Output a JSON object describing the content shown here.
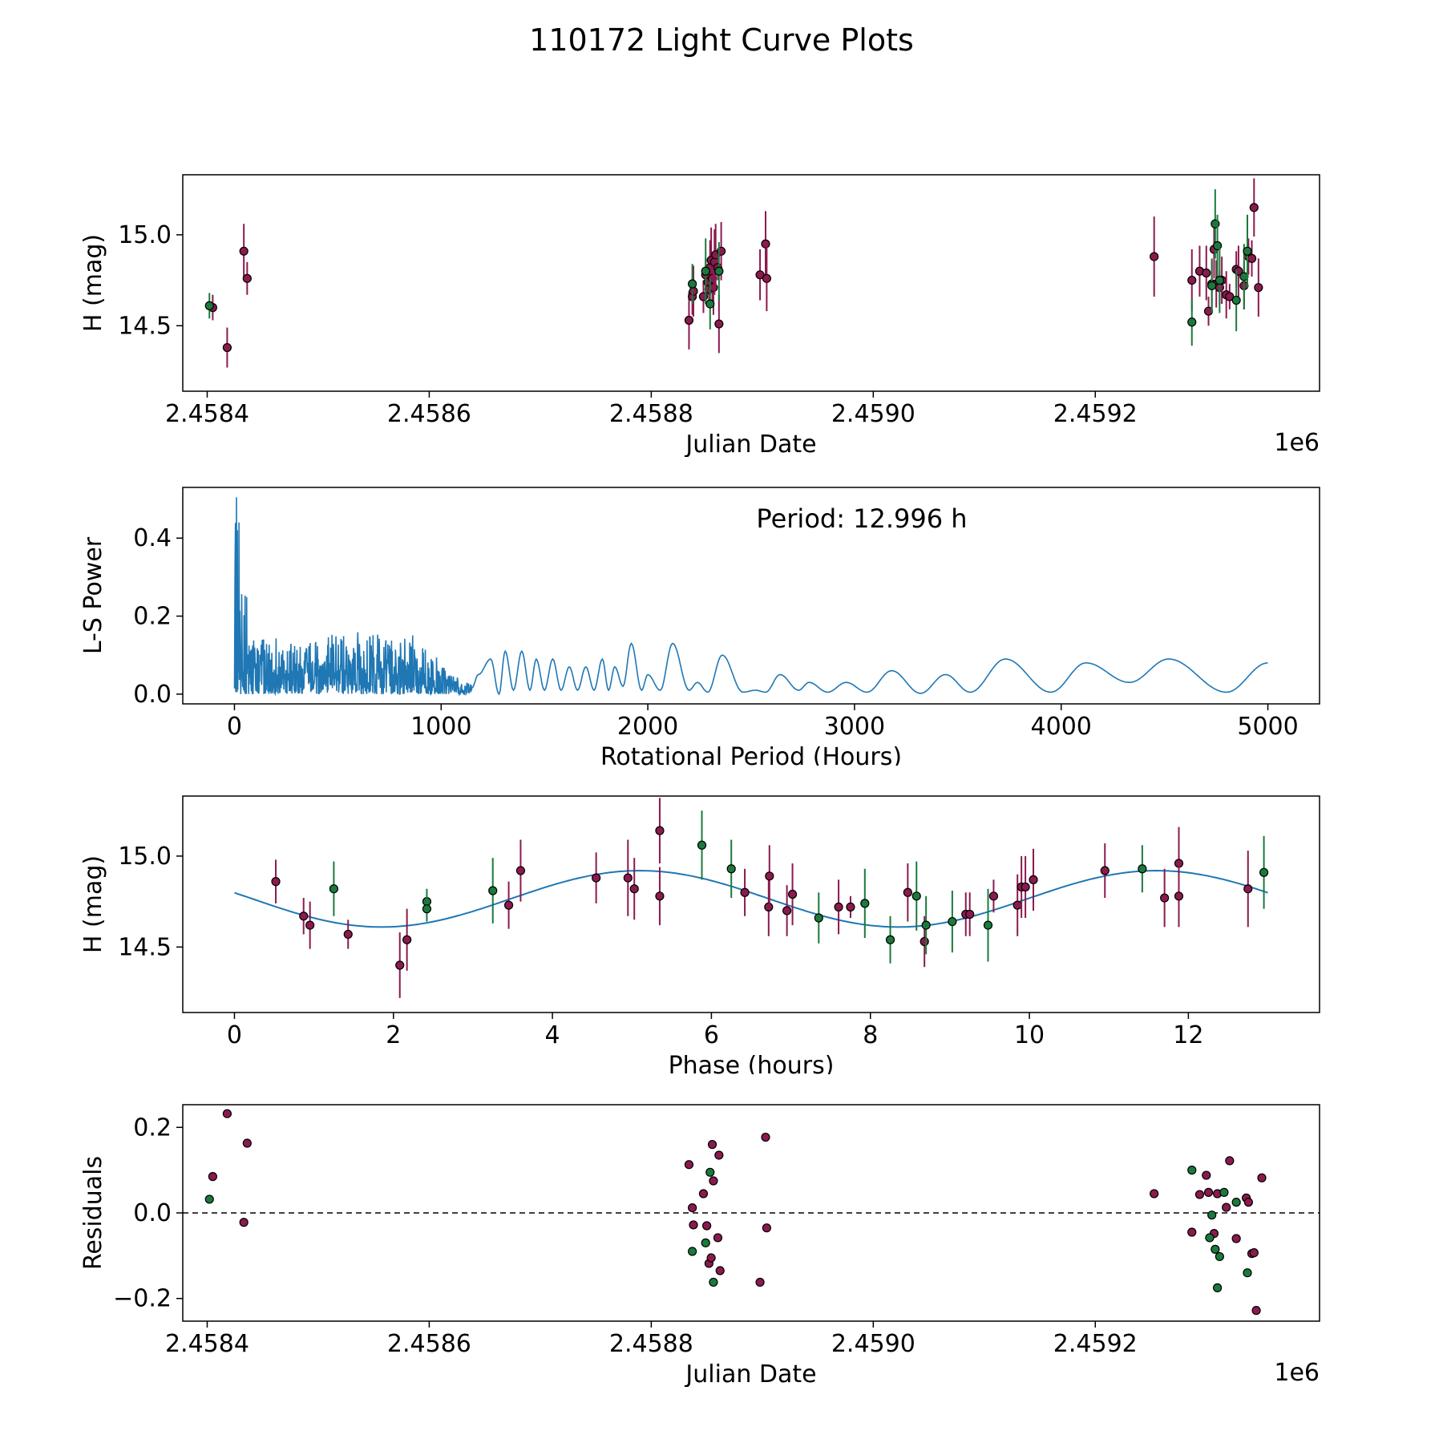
{
  "figure_title": "110172 Light Curve Plots",
  "colors": {
    "magenta": "#8b1a4e",
    "green": "#1a7a3c",
    "model": "#1f77b4",
    "axis": "#000000"
  },
  "chart_data": [
    {
      "id": "lightcurve",
      "type": "scatter",
      "title": "",
      "xlabel": "Julian Date",
      "ylabel": "H (mag)",
      "xlim": [
        2458378,
        2459402
      ],
      "ylim": [
        14.14,
        15.33
      ],
      "xticks": [
        2458400,
        2458600,
        2458800,
        2459000,
        2459200
      ],
      "xtick_labels": [
        "2.4584",
        "2.4586",
        "2.4588",
        "2.4590",
        "2.4592"
      ],
      "offset_label": "1e6",
      "yticks": [
        14.5,
        15.0
      ],
      "ytick_labels": [
        "14.5",
        "15.0"
      ],
      "series": [
        {
          "name": "magenta",
          "points": [
            [
              2458405,
              14.6,
              0.07
            ],
            [
              2458418,
              14.38,
              0.11
            ],
            [
              2458433,
              14.91,
              0.15
            ],
            [
              2458436,
              14.76,
              0.09
            ],
            [
              2458834,
              14.53,
              0.16
            ],
            [
              2458837,
              14.66,
              0.1
            ],
            [
              2458838,
              14.69,
              0.14
            ],
            [
              2458847,
              14.66,
              0.09
            ],
            [
              2458849,
              14.78,
              0.09
            ],
            [
              2458851,
              14.74,
              0.07
            ],
            [
              2458852,
              14.7,
              0.08
            ],
            [
              2458853,
              14.82,
              0.15
            ],
            [
              2458854,
              14.86,
              0.18
            ],
            [
              2458855,
              14.76,
              0.12
            ],
            [
              2458856,
              14.71,
              0.15
            ],
            [
              2458857,
              14.85,
              0.18
            ],
            [
              2458858,
              14.89,
              0.17
            ],
            [
              2458860,
              14.82,
              0.07
            ],
            [
              2458861,
              14.51,
              0.16
            ],
            [
              2458863,
              14.91,
              0.16
            ],
            [
              2458898,
              14.78,
              0.14
            ],
            [
              2458903,
              14.95,
              0.18
            ],
            [
              2458904,
              14.76,
              0.18
            ],
            [
              2459253,
              14.88,
              0.22
            ],
            [
              2459287,
              14.75,
              0.17
            ],
            [
              2459294,
              14.8,
              0.14
            ],
            [
              2459300,
              14.79,
              0.15
            ],
            [
              2459302,
              14.58,
              0.08
            ],
            [
              2459305,
              14.73,
              0.13
            ],
            [
              2459307,
              14.92,
              0.16
            ],
            [
              2459309,
              14.73,
              0.13
            ],
            [
              2459312,
              14.71,
              0.09
            ],
            [
              2459314,
              14.75,
              0.13
            ],
            [
              2459318,
              14.67,
              0.13
            ],
            [
              2459321,
              14.66,
              0.07
            ],
            [
              2459327,
              14.81,
              0.1
            ],
            [
              2459329,
              14.8,
              0.14
            ],
            [
              2459334,
              14.72,
              0.13
            ],
            [
              2459338,
              14.88,
              0.1
            ],
            [
              2459341,
              14.87,
              0.1
            ],
            [
              2459343,
              15.15,
              0.16
            ],
            [
              2459347,
              14.71,
              0.16
            ]
          ]
        },
        {
          "name": "green",
          "points": [
            [
              2458402,
              14.61,
              0.07
            ],
            [
              2458837,
              14.73,
              0.11
            ],
            [
              2458849,
              14.8,
              0.18
            ],
            [
              2458853,
              14.62,
              0.14
            ],
            [
              2458861,
              14.8,
              0.16
            ],
            [
              2459287,
              14.52,
              0.13
            ],
            [
              2459305,
              14.72,
              0.15
            ],
            [
              2459308,
              15.06,
              0.19
            ],
            [
              2459310,
              14.94,
              0.17
            ],
            [
              2459312,
              14.75,
              0.18
            ],
            [
              2459327,
              14.64,
              0.17
            ],
            [
              2459334,
              14.77,
              0.18
            ],
            [
              2459337,
              14.91,
              0.2
            ]
          ]
        }
      ]
    },
    {
      "id": "periodogram",
      "type": "line",
      "title": "",
      "annotation": "Period: 12.996 h",
      "xlabel": "Rotational Period (Hours)",
      "ylabel": "L-S Power",
      "xlim": [
        -250,
        5250
      ],
      "ylim": [
        -0.025,
        0.53
      ],
      "xticks": [
        0,
        1000,
        2000,
        3000,
        4000,
        5000
      ],
      "xtick_labels": [
        "0",
        "1000",
        "2000",
        "3000",
        "4000",
        "5000"
      ],
      "yticks": [
        0.0,
        0.2,
        0.4
      ],
      "ytick_labels": [
        "0.0",
        "0.2",
        "0.4"
      ],
      "peaks": [
        [
          1180,
          0.05
        ],
        [
          1240,
          0.09
        ],
        [
          1310,
          0.11
        ],
        [
          1390,
          0.11
        ],
        [
          1460,
          0.09
        ],
        [
          1540,
          0.09
        ],
        [
          1620,
          0.07
        ],
        [
          1700,
          0.07
        ],
        [
          1780,
          0.09
        ],
        [
          1840,
          0.07
        ],
        [
          1920,
          0.13
        ],
        [
          2000,
          0.05
        ],
        [
          2120,
          0.13
        ],
        [
          2240,
          0.03
        ],
        [
          2360,
          0.1
        ],
        [
          2520,
          0.01
        ],
        [
          2640,
          0.05
        ],
        [
          2780,
          0.03
        ],
        [
          2960,
          0.03
        ],
        [
          3180,
          0.06
        ],
        [
          3440,
          0.05
        ],
        [
          3730,
          0.09
        ],
        [
          4120,
          0.08
        ],
        [
          4520,
          0.09
        ]
      ],
      "minima": [
        [
          1280,
          0.0
        ],
        [
          1350,
          0.01
        ],
        [
          1430,
          0.01
        ],
        [
          1500,
          0.01
        ],
        [
          1580,
          0.01
        ],
        [
          1660,
          0.01
        ],
        [
          1740,
          0.01
        ],
        [
          1810,
          0.01
        ],
        [
          1880,
          0.02
        ],
        [
          1970,
          0.01
        ],
        [
          2060,
          0.01
        ],
        [
          2200,
          0.01
        ],
        [
          2290,
          0.005
        ],
        [
          2460,
          0.005
        ],
        [
          2570,
          0.005
        ],
        [
          2730,
          0.01
        ],
        [
          2870,
          0.005
        ],
        [
          3060,
          0.005
        ],
        [
          3320,
          0.002
        ],
        [
          3560,
          0.005
        ],
        [
          3950,
          0.005
        ],
        [
          4330,
          0.03
        ],
        [
          4800,
          0.005
        ]
      ],
      "end": [
        5000,
        0.08
      ]
    },
    {
      "id": "phased",
      "type": "scatter",
      "title": "",
      "xlabel": "Phase (hours)",
      "ylabel": "H (mag)",
      "xlim": [
        -0.65,
        13.65
      ],
      "ylim": [
        14.14,
        15.33
      ],
      "xticks": [
        0,
        2,
        4,
        6,
        8,
        10,
        12
      ],
      "xtick_labels": [
        "0",
        "2",
        "4",
        "6",
        "8",
        "10",
        "12"
      ],
      "yticks": [
        14.5,
        15.0
      ],
      "ytick_labels": [
        "14.5",
        "15.0"
      ],
      "model": {
        "mean": 14.765,
        "amplitude": 0.155,
        "period": 13.0,
        "peak_phase": 5.1,
        "xmin": 0,
        "xmax": 13.0
      },
      "series": [
        {
          "name": "magenta",
          "points": [
            [
              0.52,
              14.86,
              0.12
            ],
            [
              0.87,
              14.67,
              0.1
            ],
            [
              0.95,
              14.62,
              0.13
            ],
            [
              1.43,
              14.57,
              0.08
            ],
            [
              2.08,
              14.4,
              0.18
            ],
            [
              2.17,
              14.54,
              0.17
            ],
            [
              3.45,
              14.73,
              0.13
            ],
            [
              3.6,
              14.92,
              0.17
            ],
            [
              4.55,
              14.88,
              0.14
            ],
            [
              4.95,
              14.88,
              0.21
            ],
            [
              5.03,
              14.82,
              0.17
            ],
            [
              5.35,
              15.14,
              0.18
            ],
            [
              5.35,
              14.78,
              0.16
            ],
            [
              6.42,
              14.8,
              0.13
            ],
            [
              6.72,
              14.72,
              0.16
            ],
            [
              6.73,
              14.89,
              0.17
            ],
            [
              6.95,
              14.7,
              0.14
            ],
            [
              7.02,
              14.79,
              0.17
            ],
            [
              7.6,
              14.72,
              0.15
            ],
            [
              7.75,
              14.72,
              0.06
            ],
            [
              8.47,
              14.8,
              0.16
            ],
            [
              8.68,
              14.53,
              0.14
            ],
            [
              9.2,
              14.68,
              0.12
            ],
            [
              9.25,
              14.68,
              0.12
            ],
            [
              9.55,
              14.78,
              0.09
            ],
            [
              9.85,
              14.73,
              0.17
            ],
            [
              9.9,
              14.83,
              0.17
            ],
            [
              9.95,
              14.83,
              0.17
            ],
            [
              10.05,
              14.87,
              0.17
            ],
            [
              10.95,
              14.92,
              0.15
            ],
            [
              11.7,
              14.77,
              0.16
            ],
            [
              11.88,
              14.96,
              0.2
            ],
            [
              11.88,
              14.78,
              0.17
            ],
            [
              12.75,
              14.82,
              0.21
            ]
          ]
        },
        {
          "name": "green",
          "points": [
            [
              1.25,
              14.82,
              0.15
            ],
            [
              2.42,
              14.75,
              0.07
            ],
            [
              2.42,
              14.71,
              0.07
            ],
            [
              3.25,
              14.81,
              0.18
            ],
            [
              5.88,
              15.06,
              0.19
            ],
            [
              6.25,
              14.93,
              0.16
            ],
            [
              7.35,
              14.66,
              0.14
            ],
            [
              7.93,
              14.74,
              0.19
            ],
            [
              8.25,
              14.54,
              0.13
            ],
            [
              8.58,
              14.78,
              0.19
            ],
            [
              8.7,
              14.62,
              0.16
            ],
            [
              9.03,
              14.64,
              0.17
            ],
            [
              9.48,
              14.62,
              0.2
            ],
            [
              11.42,
              14.93,
              0.13
            ],
            [
              12.95,
              14.91,
              0.2
            ]
          ]
        }
      ]
    },
    {
      "id": "residuals",
      "type": "scatter",
      "title": "",
      "xlabel": "Julian Date",
      "ylabel": "Residuals",
      "xlim": [
        2458378,
        2459402
      ],
      "ylim": [
        -0.253,
        0.253
      ],
      "xticks": [
        2458400,
        2458600,
        2458800,
        2459000,
        2459200
      ],
      "xtick_labels": [
        "2.4584",
        "2.4586",
        "2.4588",
        "2.4590",
        "2.4592"
      ],
      "offset_label": "1e6",
      "yticks": [
        -0.2,
        0.0,
        0.2
      ],
      "ytick_labels": [
        "−0.2",
        "0.0",
        "0.2"
      ],
      "zero_line": true,
      "series": [
        {
          "name": "magenta",
          "points": [
            [
              2458405,
              0.085
            ],
            [
              2458418,
              0.232
            ],
            [
              2458433,
              -0.022
            ],
            [
              2458436,
              0.163
            ],
            [
              2458834,
              0.113
            ],
            [
              2458837,
              0.012
            ],
            [
              2458838,
              -0.028
            ],
            [
              2458847,
              0.045
            ],
            [
              2458850,
              -0.03
            ],
            [
              2458852,
              -0.118
            ],
            [
              2458854,
              -0.105
            ],
            [
              2458855,
              0.16
            ],
            [
              2458856,
              0.075
            ],
            [
              2458860,
              -0.058
            ],
            [
              2458861,
              0.135
            ],
            [
              2458862,
              -0.135
            ],
            [
              2458898,
              -0.162
            ],
            [
              2458903,
              0.177
            ],
            [
              2458904,
              -0.035
            ],
            [
              2459253,
              0.045
            ],
            [
              2459287,
              -0.045
            ],
            [
              2459294,
              0.043
            ],
            [
              2459300,
              0.088
            ],
            [
              2459302,
              0.048
            ],
            [
              2459307,
              -0.048
            ],
            [
              2459310,
              0.045
            ],
            [
              2459318,
              0.013
            ],
            [
              2459321,
              0.122
            ],
            [
              2459327,
              -0.06
            ],
            [
              2459336,
              0.035
            ],
            [
              2459338,
              0.025
            ],
            [
              2459341,
              -0.095
            ],
            [
              2459343,
              -0.093
            ],
            [
              2459345,
              -0.228
            ],
            [
              2459350,
              0.082
            ]
          ]
        },
        {
          "name": "green",
          "points": [
            [
              2458402,
              0.032
            ],
            [
              2458837,
              -0.09
            ],
            [
              2458849,
              -0.07
            ],
            [
              2458853,
              0.095
            ],
            [
              2458856,
              -0.162
            ],
            [
              2459287,
              0.1
            ],
            [
              2459303,
              -0.058
            ],
            [
              2459305,
              -0.005
            ],
            [
              2459308,
              -0.085
            ],
            [
              2459310,
              -0.175
            ],
            [
              2459312,
              -0.102
            ],
            [
              2459316,
              0.048
            ],
            [
              2459327,
              0.025
            ],
            [
              2459337,
              -0.14
            ]
          ]
        }
      ]
    }
  ]
}
